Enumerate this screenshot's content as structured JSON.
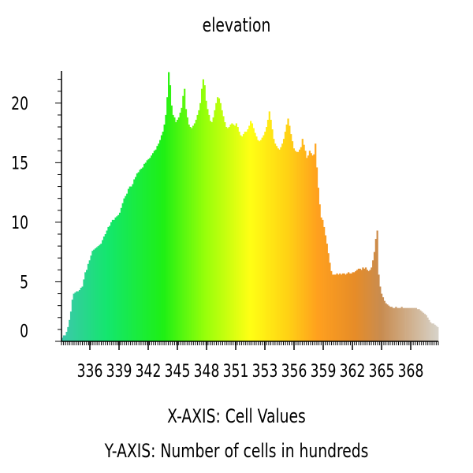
{
  "chart_data": {
    "type": "bar",
    "title": "elevation",
    "xlabel": "X-AXIS: Cell Values",
    "ylabel": "Y-AXIS: Number of cells in hundreds",
    "xlim": [
      333.2,
      370.4
    ],
    "ylim": [
      0,
      22.7
    ],
    "x_ticks": [
      "336",
      "339",
      "342",
      "345",
      "348",
      "351",
      "353",
      "356",
      "359",
      "362",
      "365",
      "368"
    ],
    "y_ticks": [
      "0",
      "5",
      "10",
      "15",
      "20"
    ],
    "grid": false,
    "legend": "none",
    "series": [
      {
        "x_start": 333.2,
        "x_end": 370.4,
        "values": [
          0.3,
          0.5,
          0.5,
          0.8,
          1.2,
          1.8,
          2.5,
          3.5,
          4.0,
          4.1,
          4.2,
          4.2,
          4.3,
          4.5,
          4.6,
          5.2,
          5.8,
          6.0,
          6.5,
          6.8,
          7.2,
          7.6,
          7.7,
          7.8,
          7.9,
          8.0,
          8.1,
          8.2,
          8.5,
          8.8,
          9.0,
          9.3,
          9.6,
          9.7,
          10.0,
          10.2,
          10.2,
          10.4,
          10.5,
          10.6,
          10.8,
          11.2,
          11.6,
          12.0,
          12.2,
          12.4,
          12.8,
          13.0,
          13.0,
          13.2,
          13.6,
          13.8,
          14.1,
          14.2,
          14.4,
          14.5,
          14.6,
          14.9,
          15.0,
          15.2,
          15.3,
          15.4,
          15.6,
          15.8,
          16.0,
          16.1,
          16.4,
          16.6,
          16.9,
          17.3,
          17.6,
          18.2,
          19.0,
          20.5,
          22.6,
          21.5,
          19.8,
          19.0,
          18.8,
          18.4,
          18.6,
          18.8,
          19.2,
          19.6,
          20.6,
          21.2,
          19.5,
          18.8,
          18.2,
          18.0,
          17.9,
          18.1,
          18.3,
          18.6,
          19.0,
          19.4,
          20.0,
          21.2,
          22.0,
          21.5,
          20.2,
          19.5,
          19.0,
          18.5,
          18.4,
          18.8,
          19.4,
          20.0,
          20.5,
          20.4,
          20.0,
          19.4,
          18.9,
          18.4,
          18.0,
          17.9,
          18.0,
          18.2,
          18.3,
          18.2,
          18.1,
          18.3,
          18.0,
          17.6,
          17.3,
          17.2,
          17.4,
          17.6,
          17.6,
          17.8,
          18.1,
          18.5,
          18.3,
          17.9,
          17.5,
          17.2,
          16.9,
          16.8,
          16.9,
          17.1,
          17.3,
          17.6,
          18.0,
          18.6,
          19.3,
          18.6,
          17.8,
          17.0,
          16.6,
          16.4,
          16.2,
          16.1,
          16.3,
          16.6,
          17.0,
          17.6,
          18.2,
          18.7,
          18.1,
          17.4,
          16.8,
          16.2,
          16.0,
          15.9,
          15.9,
          16.1,
          16.3,
          17.0,
          16.5,
          16.0,
          15.4,
          15.6,
          16.0,
          15.8,
          15.6,
          15.7,
          16.6,
          14.6,
          12.9,
          11.5,
          10.4,
          10.2,
          9.6,
          8.9,
          8.2,
          7.4,
          6.6,
          5.9,
          5.6,
          5.6,
          5.6,
          5.7,
          5.6,
          5.7,
          5.6,
          5.7,
          5.7,
          5.6,
          5.7,
          5.8,
          5.7,
          5.7,
          5.8,
          5.8,
          5.9,
          6.0,
          6.1,
          6.1,
          6.0,
          6.2,
          6.1,
          6.2,
          6.0,
          5.9,
          6.0,
          6.2,
          6.8,
          7.5,
          8.6,
          9.3,
          5.6,
          4.6,
          4.0,
          3.7,
          3.4,
          3.2,
          3.1,
          3.0,
          2.9,
          2.9,
          2.8,
          2.8,
          2.9,
          2.8,
          2.8,
          2.8,
          2.9,
          2.8,
          2.8,
          2.8,
          2.8,
          2.8,
          2.8,
          2.8,
          2.8,
          2.8,
          2.8,
          2.7,
          2.7,
          2.6,
          2.5,
          2.4,
          2.3,
          2.2,
          2.0,
          1.8,
          1.6,
          1.5,
          1.5,
          1.4,
          1.3,
          1.2
        ]
      }
    ]
  }
}
